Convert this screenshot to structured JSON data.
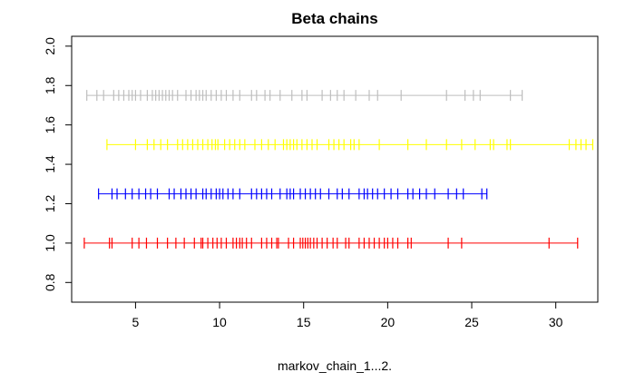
{
  "chart_data": {
    "type": "strip",
    "title": "Beta chains",
    "xlabel": "markov_chain_1...2.",
    "ylabel": "",
    "xlim": [
      1.2,
      32.5
    ],
    "ylim": [
      0.7,
      2.05
    ],
    "x_ticks": [
      5,
      10,
      15,
      20,
      25,
      30
    ],
    "y_ticks": [
      0.8,
      1.0,
      1.2,
      1.4,
      1.6,
      1.8,
      2.0
    ],
    "x_tick_labels": [
      "5",
      "10",
      "15",
      "20",
      "25",
      "30"
    ],
    "y_tick_labels": [
      "0.8",
      "1.0",
      "1.2",
      "1.4",
      "1.6",
      "1.8",
      "2.0"
    ],
    "grid": false,
    "series": [
      {
        "y": 1.0,
        "color": "#ff0000",
        "values": [
          1.95,
          3.45,
          3.6,
          4.8,
          5.2,
          5.65,
          6.3,
          6.9,
          7.4,
          7.9,
          8.5,
          8.9,
          9.0,
          9.3,
          9.6,
          9.85,
          10.1,
          10.4,
          10.8,
          11.0,
          11.2,
          11.35,
          11.6,
          11.9,
          12.5,
          12.8,
          13.1,
          13.4,
          13.5,
          14.1,
          14.4,
          14.8,
          14.95,
          15.1,
          15.25,
          15.4,
          15.6,
          15.8,
          16.1,
          16.4,
          16.75,
          17.0,
          17.5,
          17.7,
          18.3,
          18.6,
          18.9,
          19.2,
          19.5,
          19.8,
          20.0,
          20.3,
          20.6,
          21.2,
          21.4,
          23.6,
          24.4,
          29.6,
          31.3
        ]
      },
      {
        "y": 1.25,
        "color": "#0000ff",
        "values": [
          2.8,
          3.6,
          3.9,
          4.4,
          4.8,
          5.2,
          5.6,
          5.9,
          6.3,
          7.0,
          7.3,
          7.7,
          8.0,
          8.3,
          8.6,
          9.0,
          9.2,
          9.5,
          9.8,
          10.0,
          10.2,
          10.5,
          10.8,
          11.2,
          11.9,
          12.2,
          12.5,
          12.8,
          13.1,
          13.6,
          14.0,
          14.2,
          14.4,
          14.8,
          15.1,
          15.4,
          15.7,
          16.0,
          16.5,
          17.0,
          17.3,
          17.7,
          18.3,
          18.6,
          18.8,
          19.1,
          19.4,
          19.8,
          20.2,
          20.6,
          21.2,
          21.5,
          21.9,
          22.3,
          22.8,
          23.6,
          24.1,
          24.5,
          25.6,
          25.9
        ]
      },
      {
        "y": 1.5,
        "color": "#ffff00",
        "values": [
          3.3,
          5.0,
          5.7,
          6.1,
          6.5,
          6.9,
          7.5,
          7.8,
          8.1,
          8.4,
          8.7,
          9.0,
          9.3,
          9.55,
          9.75,
          9.9,
          10.3,
          10.6,
          10.9,
          11.2,
          11.5,
          12.1,
          12.5,
          12.9,
          13.3,
          13.8,
          14.0,
          14.2,
          14.4,
          14.6,
          14.9,
          15.2,
          15.5,
          15.8,
          16.5,
          16.8,
          17.1,
          17.4,
          17.8,
          18.0,
          18.3,
          19.5,
          21.2,
          22.3,
          23.5,
          24.4,
          25.2,
          26.1,
          26.3,
          27.1,
          27.3,
          30.8,
          31.2,
          31.5,
          31.8,
          32.2
        ]
      },
      {
        "y": 1.75,
        "color": "#bebebe",
        "values": [
          2.1,
          2.7,
          3.1,
          3.7,
          4.0,
          4.3,
          4.6,
          4.8,
          5.0,
          5.3,
          5.7,
          6.0,
          6.2,
          6.4,
          6.6,
          6.8,
          7.0,
          7.2,
          7.5,
          8.0,
          8.3,
          8.6,
          8.8,
          9.0,
          9.2,
          9.5,
          9.8,
          10.1,
          10.4,
          10.8,
          11.2,
          11.9,
          12.2,
          12.7,
          13.0,
          13.6,
          14.3,
          14.9,
          15.2,
          16.1,
          16.6,
          17.0,
          17.4,
          18.1,
          18.9,
          19.4,
          20.8,
          23.5,
          24.6,
          25.1,
          25.5,
          27.3,
          28.0
        ]
      }
    ]
  }
}
